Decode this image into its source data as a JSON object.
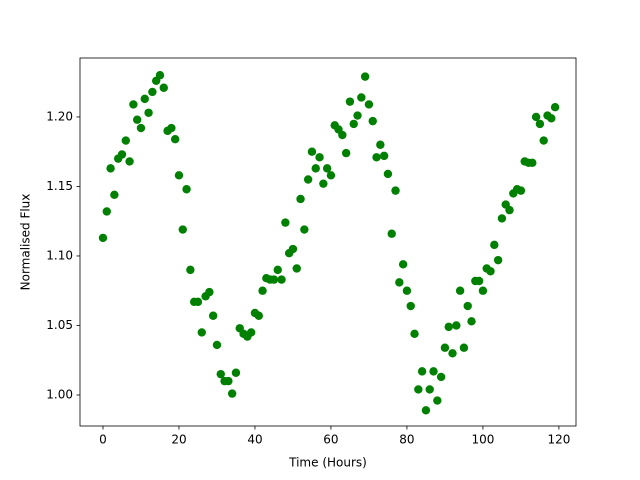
{
  "chart_data": {
    "type": "scatter",
    "xlabel": "Time (Hours)",
    "ylabel": "Normalised Flux",
    "color": "#008000",
    "x": [
      0,
      1,
      2,
      3,
      4,
      5,
      6,
      7,
      8,
      9,
      10,
      11,
      12,
      13,
      14,
      15,
      16,
      17,
      18,
      19,
      20,
      21,
      22,
      23,
      24,
      25,
      26,
      27,
      28,
      29,
      30,
      31,
      32,
      33,
      34,
      35,
      36,
      37,
      38,
      39,
      40,
      41,
      42,
      43,
      44,
      45,
      46,
      47,
      48,
      49,
      50,
      51,
      52,
      53,
      54,
      55,
      56,
      57,
      58,
      59,
      60,
      61,
      62,
      63,
      64,
      65,
      66,
      67,
      68,
      69,
      70,
      71,
      72,
      73,
      74,
      75,
      76,
      77,
      78,
      79,
      80,
      81,
      82,
      83,
      84,
      85,
      86,
      87,
      88,
      89,
      90,
      91,
      92,
      93,
      94,
      95,
      96,
      97,
      98,
      99,
      100,
      101,
      102,
      103,
      104,
      105,
      106,
      107,
      108,
      109,
      110,
      111,
      112,
      113,
      114,
      115,
      116,
      117,
      118,
      119
    ],
    "values": [
      1.113,
      1.132,
      1.163,
      1.144,
      1.17,
      1.173,
      1.183,
      1.168,
      1.209,
      1.198,
      1.192,
      1.213,
      1.203,
      1.218,
      1.226,
      1.23,
      1.221,
      1.19,
      1.192,
      1.184,
      1.158,
      1.119,
      1.148,
      1.09,
      1.067,
      1.067,
      1.045,
      1.071,
      1.074,
      1.057,
      1.036,
      1.015,
      1.01,
      1.01,
      1.001,
      1.016,
      1.048,
      1.044,
      1.042,
      1.045,
      1.059,
      1.057,
      1.075,
      1.084,
      1.083,
      1.083,
      1.09,
      1.083,
      1.124,
      1.102,
      1.105,
      1.091,
      1.141,
      1.119,
      1.155,
      1.175,
      1.163,
      1.171,
      1.152,
      1.163,
      1.158,
      1.194,
      1.191,
      1.187,
      1.174,
      1.211,
      1.195,
      1.201,
      1.214,
      1.229,
      1.209,
      1.197,
      1.171,
      1.18,
      1.172,
      1.159,
      1.116,
      1.147,
      1.081,
      1.094,
      1.075,
      1.064,
      1.044,
      1.004,
      1.017,
      0.989,
      1.004,
      1.017,
      0.996,
      1.013,
      1.034,
      1.049,
      1.03,
      1.05,
      1.075,
      1.034,
      1.064,
      1.053,
      1.082,
      1.082,
      1.075,
      1.091,
      1.089,
      1.108,
      1.097,
      1.127,
      1.137,
      1.133,
      1.145,
      1.148,
      1.147,
      1.168,
      1.167,
      1.167,
      1.2,
      1.195,
      1.183,
      1.201,
      1.199,
      1.207
    ],
    "xlim": [
      -6.05,
      124.5
    ],
    "ylim": [
      0.9777,
      1.2424
    ],
    "xticks": [
      0,
      20,
      40,
      60,
      80,
      100,
      120
    ],
    "yticks": [
      {
        "value": 1,
        "label": "1.00"
      },
      1.05,
      {
        "value": 1.1,
        "label": "1.10"
      },
      1.15,
      {
        "value": 1.2,
        "label": "1.20"
      }
    ]
  }
}
